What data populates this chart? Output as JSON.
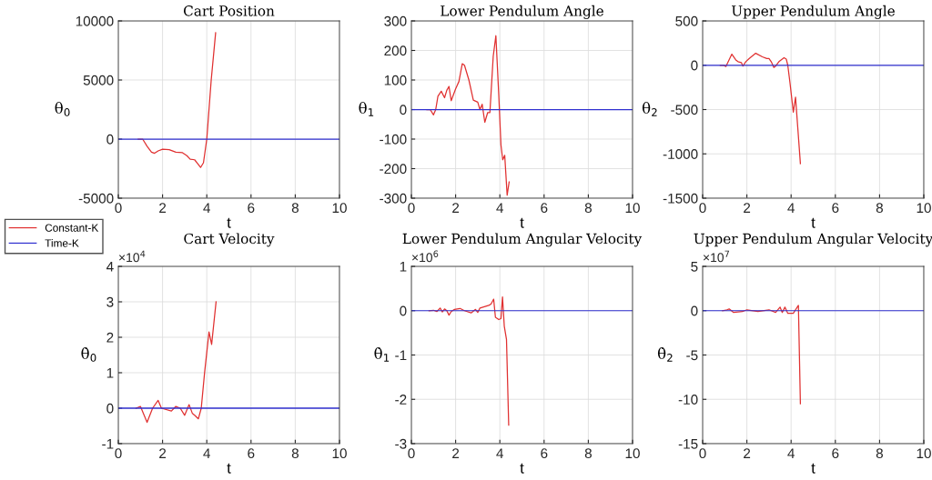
{
  "chart_data": [
    {
      "type": "line",
      "title": "Cart Position",
      "xlabel": "t",
      "ylabel": "θ$_{0}$",
      "xlim": [
        0,
        10
      ],
      "xticks": [
        0,
        2,
        4,
        6,
        8,
        10
      ],
      "ylim": [
        -5000,
        10000
      ],
      "yticks": [
        -5000,
        0,
        5000,
        10000
      ],
      "grid": true,
      "legend": "bottom left",
      "series": [
        {
          "name": "Constant-K",
          "color": "#e03030",
          "x": [
            0.9,
            1.1,
            1.3,
            1.5,
            1.64,
            1.8,
            2.0,
            2.3,
            2.6,
            2.9,
            3.1,
            3.25,
            3.45,
            3.6,
            3.72,
            3.85,
            4.0,
            4.2,
            4.4
          ],
          "values": [
            0,
            0,
            -600,
            -1100,
            -1200,
            -1000,
            -850,
            -900,
            -1100,
            -1150,
            -1400,
            -1700,
            -1750,
            -2100,
            -2400,
            -2000,
            0,
            5000,
            9000
          ]
        },
        {
          "name": "Time-K",
          "color": "#3030d0",
          "x": [
            0,
            10
          ],
          "values": [
            0,
            0
          ]
        }
      ]
    },
    {
      "type": "line",
      "title": "Lower Pendulum Angle",
      "xlabel": "t",
      "ylabel": "θ$_{1}$",
      "xlim": [
        0,
        10
      ],
      "xticks": [
        0,
        2,
        4,
        6,
        8,
        10
      ],
      "ylim": [
        -300,
        300
      ],
      "yticks": [
        -300,
        -200,
        -100,
        0,
        100,
        200,
        300
      ],
      "grid": true,
      "series": [
        {
          "color": "#e03030",
          "x": [
            0.7,
            0.85,
            1.0,
            1.1,
            1.2,
            1.35,
            1.5,
            1.6,
            1.7,
            1.8,
            2.0,
            2.15,
            2.3,
            2.4,
            2.6,
            2.8,
            3.0,
            3.1,
            3.2,
            3.32,
            3.45,
            3.55,
            3.7,
            3.82,
            3.95,
            4.05,
            4.13,
            4.22,
            4.33,
            4.42
          ],
          "values": [
            0,
            0,
            -18,
            0,
            45,
            62,
            40,
            65,
            78,
            30,
            70,
            95,
            155,
            150,
            100,
            32,
            25,
            0,
            18,
            -43,
            -10,
            -10,
            180,
            250,
            50,
            -120,
            -170,
            -155,
            -290,
            -245
          ]
        },
        {
          "color": "#3030d0",
          "x": [
            0,
            10
          ],
          "values": [
            0,
            0
          ]
        }
      ]
    },
    {
      "type": "line",
      "title": "Upper Pendulum Angle",
      "xlabel": "t",
      "ylabel": "θ$_{2}$",
      "xlim": [
        0,
        10
      ],
      "xticks": [
        0,
        2,
        4,
        6,
        8,
        10
      ],
      "ylim": [
        -1500,
        500
      ],
      "yticks": [
        -1500,
        -1000,
        -500,
        0,
        500
      ],
      "grid": true,
      "series": [
        {
          "color": "#e03030",
          "x": [
            0.8,
            0.95,
            1.05,
            1.32,
            1.5,
            1.6,
            1.75,
            1.82,
            1.95,
            2.1,
            2.4,
            2.7,
            2.9,
            3.0,
            3.1,
            3.22,
            3.3,
            3.45,
            3.68,
            3.78,
            3.85,
            3.95,
            4.1,
            4.2,
            4.3,
            4.42
          ],
          "values": [
            0,
            0,
            -15,
            125,
            60,
            40,
            30,
            -10,
            40,
            75,
            135,
            95,
            75,
            75,
            40,
            -25,
            -10,
            40,
            85,
            70,
            0,
            -200,
            -530,
            -360,
            -700,
            -1110
          ]
        },
        {
          "color": "#3030d0",
          "x": [
            0,
            10
          ],
          "values": [
            0,
            0
          ]
        }
      ]
    },
    {
      "type": "line",
      "title": "Cart Velocity",
      "xlabel": "t",
      "ylabel": "θ̇$_{0}$",
      "annotations": [
        "×10$^{4}$"
      ],
      "xlim": [
        0,
        10
      ],
      "xticks": [
        0,
        2,
        4,
        6,
        8,
        10
      ],
      "ylim": [
        -1,
        4
      ],
      "yticks": [
        -1,
        0,
        1,
        2,
        3,
        4
      ],
      "grid": true,
      "series": [
        {
          "color": "#e03030",
          "x": [
            0.8,
            1.0,
            1.3,
            1.55,
            1.8,
            1.95,
            2.4,
            2.6,
            2.8,
            3.0,
            3.2,
            3.35,
            3.45,
            3.62,
            3.75,
            3.9,
            4.1,
            4.22,
            4.42
          ],
          "values": [
            0,
            0.05,
            -0.4,
            0,
            0.22,
            0,
            -0.08,
            0.05,
            0,
            -0.2,
            0.1,
            -0.15,
            -0.2,
            -0.3,
            0,
            1.0,
            2.15,
            1.8,
            3.0
          ]
        },
        {
          "color": "#3030d0",
          "x": [
            0,
            10
          ],
          "values": [
            0,
            0
          ]
        }
      ]
    },
    {
      "type": "line",
      "title": "Lower Pendulum Angular Velocity",
      "xlabel": "t",
      "ylabel": "θ̇$_{1}$",
      "annotations": [
        "×10$^{6}$"
      ],
      "xlim": [
        0,
        10
      ],
      "xticks": [
        0,
        2,
        4,
        6,
        8,
        10
      ],
      "ylim": [
        -3,
        1
      ],
      "yticks": [
        -3,
        -2,
        -1,
        0,
        1
      ],
      "grid": true,
      "series": [
        {
          "color": "#e03030",
          "x": [
            0.8,
            1.0,
            1.15,
            1.3,
            1.4,
            1.5,
            1.6,
            1.7,
            1.8,
            1.95,
            2.2,
            2.4,
            2.7,
            2.9,
            3.0,
            3.1,
            3.3,
            3.5,
            3.6,
            3.72,
            3.8,
            3.95,
            4.05,
            4.12,
            4.2,
            4.3,
            4.4
          ],
          "values": [
            0,
            0.01,
            -0.02,
            0.06,
            -0.03,
            0.04,
            0,
            -0.1,
            -0.02,
            0.03,
            0.05,
            0,
            -0.05,
            0.03,
            -0.04,
            0.06,
            0.09,
            0.12,
            0.15,
            0.26,
            -0.15,
            -0.2,
            -0.18,
            0.31,
            -0.35,
            -0.65,
            -2.58
          ]
        },
        {
          "color": "#3030d0",
          "x": [
            0,
            10
          ],
          "values": [
            0,
            0
          ]
        }
      ]
    },
    {
      "type": "line",
      "title": "Upper Pendulum Angular Velocity",
      "xlabel": "t",
      "ylabel": "θ̇$_{2}$",
      "annotations": [
        "×10$^{7}$"
      ],
      "xlim": [
        0,
        10
      ],
      "xticks": [
        0,
        2,
        4,
        6,
        8,
        10
      ],
      "ylim": [
        -15,
        5
      ],
      "yticks": [
        -15,
        -10,
        -5,
        0,
        5
      ],
      "grid": true,
      "series": [
        {
          "color": "#e03030",
          "x": [
            0.9,
            1.1,
            1.2,
            1.4,
            1.8,
            2.0,
            2.5,
            3.0,
            3.3,
            3.5,
            3.6,
            3.72,
            3.85,
            4.1,
            4.2,
            4.33,
            4.42
          ],
          "values": [
            0,
            0.1,
            0.2,
            -0.2,
            -0.1,
            0.1,
            -0.1,
            0.1,
            -0.2,
            0.4,
            -0.2,
            0.4,
            -0.3,
            -0.3,
            0.1,
            0.6,
            -10.5
          ]
        },
        {
          "color": "#3030d0",
          "x": [
            0,
            10
          ],
          "values": [
            0,
            0
          ]
        }
      ]
    }
  ]
}
